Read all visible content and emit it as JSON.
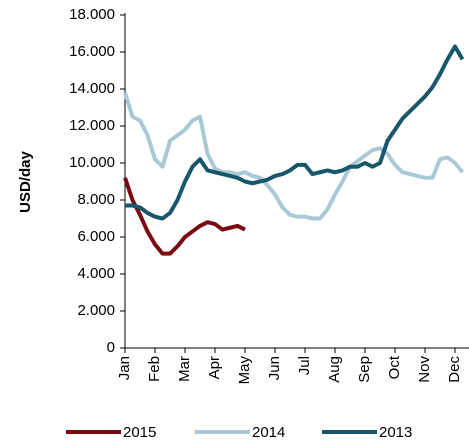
{
  "chart_data": {
    "type": "line",
    "y_label": "USD/day",
    "categories": [
      "Jan",
      null,
      null,
      null,
      "Feb",
      null,
      null,
      null,
      "Mar",
      null,
      null,
      null,
      "Apr",
      null,
      null,
      null,
      "May",
      null,
      null,
      null,
      "Jun",
      null,
      null,
      null,
      "Jul",
      null,
      null,
      null,
      "Aug",
      null,
      null,
      null,
      "Sep",
      null,
      null,
      null,
      "Oct",
      null,
      null,
      null,
      "Nov",
      null,
      null,
      null,
      "Dec",
      null
    ],
    "series": [
      {
        "name": "2015",
        "color": "#7a0a12",
        "values": [
          9200,
          8000,
          7200,
          6300,
          5600,
          5100,
          5100,
          5500,
          6000,
          6300,
          6600,
          6800,
          6700,
          6400,
          6500,
          6600,
          6400,
          null,
          null,
          null,
          null,
          null,
          null,
          null,
          null,
          null,
          null,
          null,
          null,
          null,
          null,
          null,
          null,
          null,
          null,
          null,
          null,
          null,
          null,
          null,
          null,
          null,
          null,
          null,
          null,
          null
        ]
      },
      {
        "name": "2014",
        "color": "#a9c9d7",
        "values": [
          13800,
          12500,
          12300,
          11500,
          10200,
          9800,
          11200,
          11500,
          11800,
          12300,
          12500,
          10500,
          9700,
          9500,
          9500,
          9400,
          9500,
          9300,
          9200,
          8800,
          8300,
          7600,
          7200,
          7100,
          7100,
          7000,
          7000,
          7500,
          8300,
          9000,
          9800,
          10100,
          10400,
          10700,
          10800,
          10500,
          9900,
          9500,
          9400,
          9300,
          9200,
          9200,
          10200,
          10300,
          10000,
          9500
        ]
      },
      {
        "name": "2013",
        "color": "#17566b",
        "values": [
          7700,
          7700,
          7600,
          7300,
          7100,
          7000,
          7300,
          8000,
          9000,
          9800,
          10200,
          9600,
          9500,
          9400,
          9300,
          9200,
          9000,
          8900,
          9000,
          9100,
          9300,
          9400,
          9600,
          9900,
          9900,
          9400,
          9500,
          9600,
          9500,
          9600,
          9800,
          9800,
          10000,
          9800,
          10000,
          11200,
          11800,
          12400,
          12800,
          13200,
          13600,
          14100,
          14800,
          15600,
          16300,
          15600
        ]
      }
    ],
    "ylim": [
      0,
      18000
    ],
    "yticks": [
      0,
      {
        "value": 2000,
        "label": "2.000"
      },
      {
        "value": 4000,
        "label": "4.000"
      },
      {
        "value": 6000,
        "label": "6.000"
      },
      {
        "value": 8000,
        "label": "8.000"
      },
      {
        "value": 10000,
        "label": "10.000"
      },
      {
        "value": 12000,
        "label": "12.000"
      },
      {
        "value": 14000,
        "label": "14.000"
      },
      {
        "value": 16000,
        "label": "16.000"
      },
      {
        "value": 18000,
        "label": "18.000"
      }
    ],
    "legend": "bottom"
  }
}
